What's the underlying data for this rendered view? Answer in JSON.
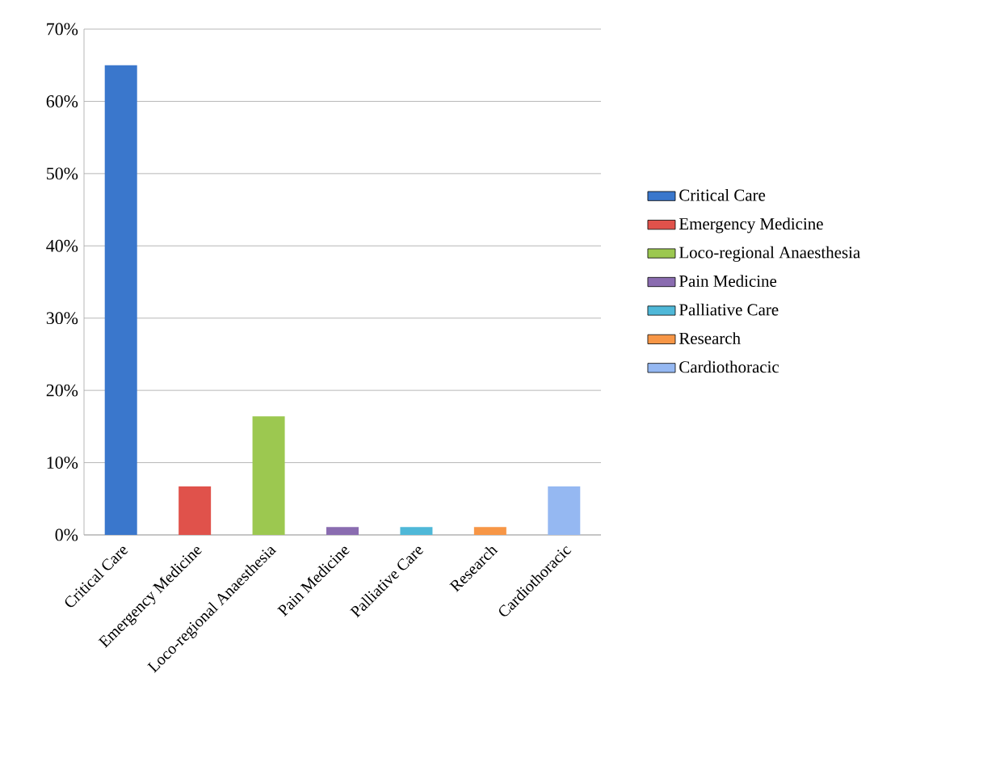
{
  "chart_data": {
    "type": "bar",
    "categories": [
      "Critical Care",
      "Emergency Medicine",
      "Loco-regional Anaesthesia",
      "Pain Medicine",
      "Palliative Care",
      "Research",
      "Cardiothoracic"
    ],
    "series": [
      {
        "name": "Critical Care",
        "color": "#3a77cc",
        "values": [
          65,
          null,
          null,
          null,
          null,
          null,
          null
        ]
      },
      {
        "name": "Emergency Medicine",
        "color": "#e0524b",
        "values": [
          null,
          6.7,
          null,
          null,
          null,
          null,
          null
        ]
      },
      {
        "name": "Loco-regional Anaesthesia",
        "color": "#9cc850",
        "values": [
          null,
          null,
          16.4,
          null,
          null,
          null,
          null
        ]
      },
      {
        "name": "Pain Medicine",
        "color": "#8a6cb0",
        "values": [
          null,
          null,
          null,
          1.1,
          null,
          null,
          null
        ]
      },
      {
        "name": "Palliative Care",
        "color": "#4fb8d8",
        "values": [
          null,
          null,
          null,
          null,
          1.1,
          null,
          null
        ]
      },
      {
        "name": "Research",
        "color": "#f79646",
        "values": [
          null,
          null,
          null,
          null,
          null,
          1.1,
          null
        ]
      },
      {
        "name": "Cardiothoracic",
        "color": "#95b8f2",
        "values": [
          null,
          null,
          null,
          null,
          null,
          null,
          6.7
        ]
      }
    ],
    "ylim": [
      0,
      70
    ],
    "yticks": [
      {
        "value": 0,
        "label": "0%"
      },
      {
        "value": 10,
        "label": "10%"
      },
      {
        "value": 20,
        "label": "20%"
      },
      {
        "value": 30,
        "label": "30%"
      },
      {
        "value": 40,
        "label": "40%"
      },
      {
        "value": 50,
        "label": "50%"
      },
      {
        "value": 60,
        "label": "60%"
      },
      {
        "value": 70,
        "label": "70%"
      }
    ],
    "grid": "y",
    "legend": "right"
  }
}
